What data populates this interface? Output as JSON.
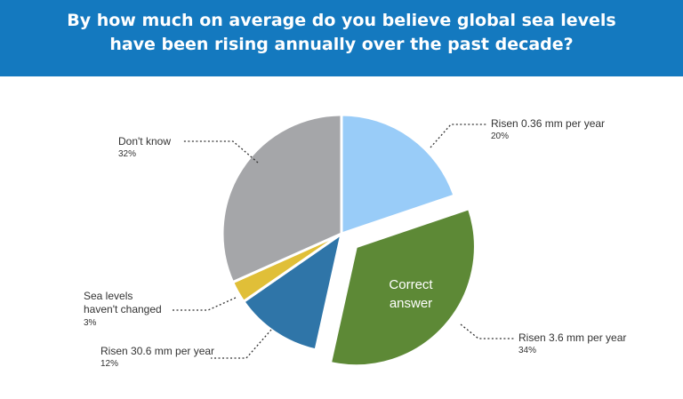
{
  "header": {
    "title_line1": "By how much on average do you believe global sea levels",
    "title_line2": "have been rising annually over the past decade?",
    "background": "#1479bf"
  },
  "chart_data": {
    "type": "pie",
    "title": "By how much on average do you believe global sea levels have been rising annually over the past decade?",
    "slices": [
      {
        "label": "Risen 0.36 mm per year",
        "percent_label": "20%",
        "value": 20,
        "color": "#99ccf8"
      },
      {
        "label": "Risen 3.6 mm per year",
        "percent_label": "34%",
        "value": 34,
        "color": "#5d8936",
        "exploded": true,
        "inner_text_1": "Correct",
        "inner_text_2": "answer"
      },
      {
        "label": "Risen 30.6 mm per year",
        "percent_label": "12%",
        "value": 12,
        "color": "#2f75a8"
      },
      {
        "label": "Sea levels haven't changed",
        "percent_label": "3%",
        "value": 3,
        "color": "#e0bf38"
      },
      {
        "label": "Don't know",
        "percent_label": "32%",
        "value": 32,
        "color": "#a5a6a9"
      }
    ],
    "start_angle": "12 o'clock",
    "direction": "clockwise"
  },
  "labels": {
    "s0": {
      "name": "Risen 0.36 mm per year",
      "pct": "20%"
    },
    "s1": {
      "name": "Risen 3.6 mm per year",
      "pct": "34%"
    },
    "s2": {
      "name": "Risen 30.6 mm per year",
      "pct": "12%"
    },
    "s3": {
      "name1": "Sea levels",
      "name2": "haven't changed",
      "pct": "3%"
    },
    "s4": {
      "name": "Don't know",
      "pct": "32%"
    },
    "inner1": "Correct",
    "inner2": "answer"
  }
}
